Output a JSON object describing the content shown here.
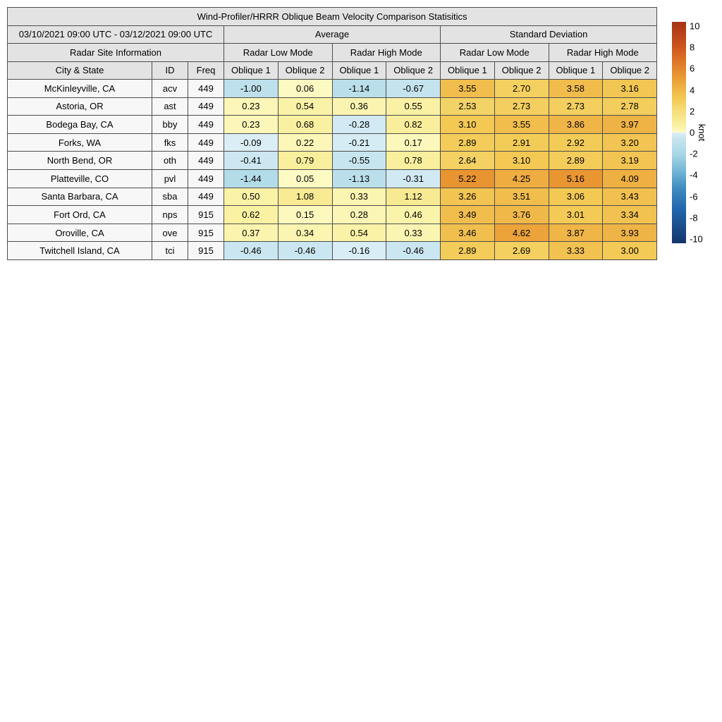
{
  "chart_data": {
    "type": "heatmap",
    "title": "Wind-Profiler/HRRR Oblique Beam Velocity Comparison Statisitics",
    "date_range": "03/10/2021 09:00 UTC - 03/12/2021 09:00 UTC",
    "headers": {
      "site_info": "Radar Site Information",
      "average": "Average",
      "std_dev": "Standard Deviation",
      "low_mode": "Radar Low Mode",
      "high_mode": "Radar High Mode",
      "city_state": "City & State",
      "id": "ID",
      "freq": "Freq",
      "oblique1": "Oblique 1",
      "oblique2": "Oblique 2"
    },
    "value_columns": [
      "Average Radar Low Mode Oblique 1",
      "Average Radar Low Mode Oblique 2",
      "Average Radar High Mode Oblique 1",
      "Average Radar High Mode Oblique 2",
      "Standard Deviation Radar Low Mode Oblique 1",
      "Standard Deviation Radar Low Mode Oblique 2",
      "Standard Deviation Radar High Mode Oblique 1",
      "Standard Deviation Radar High Mode Oblique 2"
    ],
    "rows": [
      {
        "city": "McKinleyville, CA",
        "id": "acv",
        "freq": "449",
        "values": [
          -1.0,
          0.06,
          -1.14,
          -0.67,
          3.55,
          2.7,
          3.58,
          3.16
        ]
      },
      {
        "city": "Astoria, OR",
        "id": "ast",
        "freq": "449",
        "values": [
          0.23,
          0.54,
          0.36,
          0.55,
          2.53,
          2.73,
          2.73,
          2.78
        ]
      },
      {
        "city": "Bodega Bay, CA",
        "id": "bby",
        "freq": "449",
        "values": [
          0.23,
          0.68,
          -0.28,
          0.82,
          3.1,
          3.55,
          3.86,
          3.97
        ]
      },
      {
        "city": "Forks, WA",
        "id": "fks",
        "freq": "449",
        "values": [
          -0.09,
          0.22,
          -0.21,
          0.17,
          2.89,
          2.91,
          2.92,
          3.2
        ]
      },
      {
        "city": "North Bend, OR",
        "id": "oth",
        "freq": "449",
        "values": [
          -0.41,
          0.79,
          -0.55,
          0.78,
          2.64,
          3.1,
          2.89,
          3.19
        ]
      },
      {
        "city": "Platteville, CO",
        "id": "pvl",
        "freq": "449",
        "values": [
          -1.44,
          0.05,
          -1.13,
          -0.31,
          5.22,
          4.25,
          5.16,
          4.09
        ]
      },
      {
        "city": "Santa Barbara, CA",
        "id": "sba",
        "freq": "449",
        "values": [
          0.5,
          1.08,
          0.33,
          1.12,
          3.26,
          3.51,
          3.06,
          3.43
        ]
      },
      {
        "city": "Fort Ord, CA",
        "id": "nps",
        "freq": "915",
        "values": [
          0.62,
          0.15,
          0.28,
          0.46,
          3.49,
          3.76,
          3.01,
          3.34
        ]
      },
      {
        "city": "Oroville, CA",
        "id": "ove",
        "freq": "915",
        "values": [
          0.37,
          0.34,
          0.54,
          0.33,
          3.46,
          4.62,
          3.87,
          3.93
        ]
      },
      {
        "city": "Twitchell Island, CA",
        "id": "tci",
        "freq": "915",
        "values": [
          -0.46,
          -0.46,
          -0.16,
          -0.46,
          2.89,
          2.69,
          3.33,
          3.0
        ]
      }
    ],
    "colorbar": {
      "label": "knot",
      "min": -10,
      "max": 10,
      "ticks": [
        10,
        8,
        6,
        4,
        2,
        0,
        -2,
        -4,
        -6,
        -8,
        -10
      ]
    },
    "colormap_stops": [
      [
        -10,
        "#14356b"
      ],
      [
        -7,
        "#2065ab"
      ],
      [
        -5,
        "#3f8cc0"
      ],
      [
        -3.5,
        "#74b5d6"
      ],
      [
        -2,
        "#a6d6e6"
      ],
      [
        -1.5,
        "#b2dbe9"
      ],
      [
        -1,
        "#bde0ec"
      ],
      [
        -0.5,
        "#c8e5ef"
      ],
      [
        -0.02,
        "#def0f7"
      ],
      [
        0.02,
        "#fdfac6"
      ],
      [
        0.5,
        "#faf2a7"
      ],
      [
        1,
        "#f8ec96"
      ],
      [
        2,
        "#f6dd79"
      ],
      [
        3,
        "#f3ca55"
      ],
      [
        4,
        "#efb245"
      ],
      [
        5,
        "#ea9a33"
      ],
      [
        6.5,
        "#de7426"
      ],
      [
        8,
        "#c94f1c"
      ],
      [
        10,
        "#a63415"
      ]
    ]
  }
}
